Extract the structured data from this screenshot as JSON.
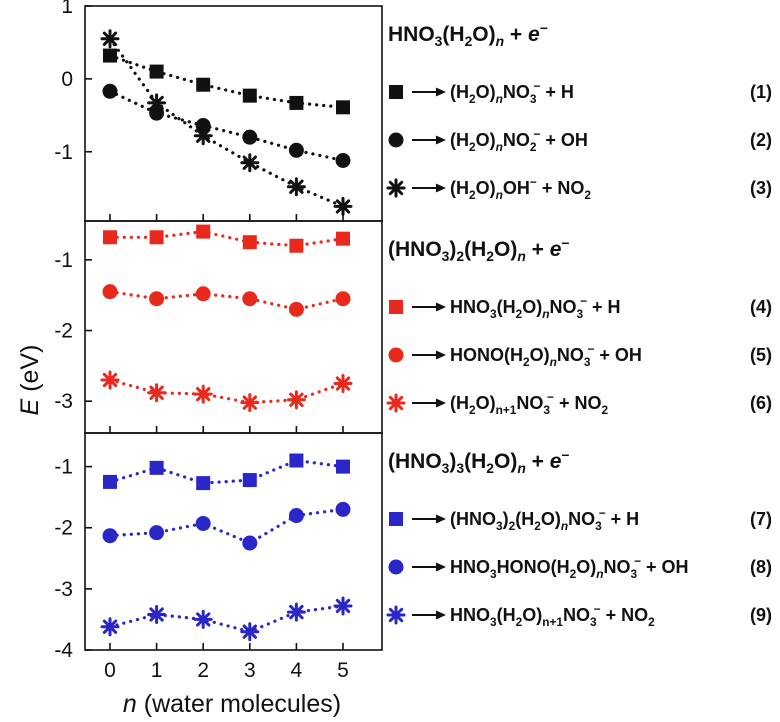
{
  "chart_data": {
    "type": "scatter",
    "xlabel_var": "n",
    "xlabel_rest": " (water molecules)",
    "ylabel_var": "E",
    "ylabel_rest": " (eV)",
    "x": [
      0,
      1,
      2,
      3,
      4,
      5
    ],
    "x_tick_labels": [
      "0",
      "1",
      "2",
      "3",
      "4",
      "5"
    ],
    "panels": [
      {
        "ylim": [
          -1.95,
          1.0
        ],
        "ticks": [
          1,
          0,
          -1
        ],
        "tick_labels": [
          "1",
          "0",
          "-1"
        ],
        "color": "#111111",
        "header": [
          [
            "n",
            "HNO"
          ],
          [
            "s",
            "3"
          ],
          [
            "n",
            "(H"
          ],
          [
            "s",
            "2"
          ],
          [
            "n",
            "O)"
          ],
          [
            "si",
            "n"
          ],
          [
            "n",
            " + "
          ],
          [
            "i",
            "e"
          ],
          [
            "p",
            "−"
          ]
        ],
        "series": [
          {
            "marker": "square",
            "number": "(1)",
            "values": [
              0.32,
              0.1,
              -0.08,
              -0.23,
              -0.33,
              -0.39
            ],
            "label": [
              [
                "n",
                "(H"
              ],
              [
                "s",
                "2"
              ],
              [
                "n",
                "O)"
              ],
              [
                "si",
                "n"
              ],
              [
                "n",
                "NO"
              ],
              [
                "ss",
                "3",
                "−"
              ],
              [
                "n",
                " + H"
              ]
            ]
          },
          {
            "marker": "circle",
            "number": "(2)",
            "values": [
              -0.17,
              -0.47,
              -0.64,
              -0.8,
              -0.98,
              -1.12
            ],
            "label": [
              [
                "n",
                "(H"
              ],
              [
                "s",
                "2"
              ],
              [
                "n",
                "O)"
              ],
              [
                "si",
                "n"
              ],
              [
                "n",
                "NO"
              ],
              [
                "ss",
                "2",
                "−"
              ],
              [
                "n",
                " + OH"
              ]
            ]
          },
          {
            "marker": "star",
            "number": "(3)",
            "values": [
              0.55,
              -0.33,
              -0.78,
              -1.15,
              -1.48,
              -1.75
            ],
            "label": [
              [
                "n",
                "(H"
              ],
              [
                "s",
                "2"
              ],
              [
                "n",
                "O)"
              ],
              [
                "si",
                "n"
              ],
              [
                "n",
                "OH"
              ],
              [
                "p",
                "−"
              ],
              [
                "n",
                " + NO"
              ],
              [
                "s",
                "2"
              ]
            ]
          }
        ]
      },
      {
        "ylim": [
          -3.45,
          -0.45
        ],
        "ticks": [
          -1,
          -2,
          -3
        ],
        "tick_labels": [
          "-1",
          "-2",
          "-3"
        ],
        "color": "#e8291c",
        "header": [
          [
            "n",
            "(HNO"
          ],
          [
            "s",
            "3"
          ],
          [
            "n",
            ")"
          ],
          [
            "s",
            "2"
          ],
          [
            "n",
            "(H"
          ],
          [
            "s",
            "2"
          ],
          [
            "n",
            "O)"
          ],
          [
            "si",
            "n"
          ],
          [
            "n",
            " + "
          ],
          [
            "i",
            "e"
          ],
          [
            "p",
            "−"
          ]
        ],
        "series": [
          {
            "marker": "square",
            "number": "(4)",
            "values": [
              -0.68,
              -0.68,
              -0.6,
              -0.75,
              -0.8,
              -0.7
            ],
            "label": [
              [
                "n",
                "HNO"
              ],
              [
                "s",
                "3"
              ],
              [
                "n",
                "(H"
              ],
              [
                "s",
                "2"
              ],
              [
                "n",
                "O)"
              ],
              [
                "si",
                "n"
              ],
              [
                "n",
                "NO"
              ],
              [
                "ss",
                "3",
                "−"
              ],
              [
                "n",
                " + H"
              ]
            ]
          },
          {
            "marker": "circle",
            "number": "(5)",
            "values": [
              -1.45,
              -1.55,
              -1.48,
              -1.55,
              -1.7,
              -1.55
            ],
            "label": [
              [
                "n",
                "HONO(H"
              ],
              [
                "s",
                "2"
              ],
              [
                "n",
                "O)"
              ],
              [
                "si",
                "n"
              ],
              [
                "n",
                "NO"
              ],
              [
                "ss",
                "3",
                "−"
              ],
              [
                "n",
                " + OH"
              ]
            ]
          },
          {
            "marker": "star",
            "number": "(6)",
            "values": [
              -2.7,
              -2.88,
              -2.9,
              -3.02,
              -2.98,
              -2.75
            ],
            "label": [
              [
                "n",
                "(H"
              ],
              [
                "s",
                "2"
              ],
              [
                "n",
                "O)"
              ],
              [
                "s",
                "n+1"
              ],
              [
                "n",
                "NO"
              ],
              [
                "ss",
                "3",
                "−"
              ],
              [
                "n",
                " + NO"
              ],
              [
                "s",
                "2"
              ]
            ]
          }
        ]
      },
      {
        "ylim": [
          -4.0,
          -0.45
        ],
        "ticks": [
          -1,
          -2,
          -3,
          -4
        ],
        "tick_labels": [
          "-1",
          "-2",
          "-3",
          "-4"
        ],
        "color": "#2a26c8",
        "header": [
          [
            "n",
            "(HNO"
          ],
          [
            "s",
            "3"
          ],
          [
            "n",
            ")"
          ],
          [
            "s",
            "3"
          ],
          [
            "n",
            "(H"
          ],
          [
            "s",
            "2"
          ],
          [
            "n",
            "O)"
          ],
          [
            "si",
            "n"
          ],
          [
            "n",
            " + "
          ],
          [
            "i",
            "e"
          ],
          [
            "p",
            "−"
          ]
        ],
        "series": [
          {
            "marker": "square",
            "number": "(7)",
            "values": [
              -1.25,
              -1.02,
              -1.27,
              -1.22,
              -0.9,
              -1.0
            ],
            "label": [
              [
                "n",
                "(HNO"
              ],
              [
                "s",
                "3"
              ],
              [
                "n",
                ")"
              ],
              [
                "s",
                "2"
              ],
              [
                "n",
                "(H"
              ],
              [
                "s",
                "2"
              ],
              [
                "n",
                "O)"
              ],
              [
                "si",
                "n"
              ],
              [
                "n",
                "NO"
              ],
              [
                "ss",
                "3",
                "−"
              ],
              [
                "n",
                " + H"
              ]
            ]
          },
          {
            "marker": "circle",
            "number": "(8)",
            "values": [
              -2.13,
              -2.08,
              -1.93,
              -2.25,
              -1.8,
              -1.7
            ],
            "label": [
              [
                "n",
                "HNO"
              ],
              [
                "s",
                "3"
              ],
              [
                "n",
                "HONO(H"
              ],
              [
                "s",
                "2"
              ],
              [
                "n",
                "O)"
              ],
              [
                "si",
                "n"
              ],
              [
                "n",
                "NO"
              ],
              [
                "ss",
                "3",
                "−"
              ],
              [
                "n",
                " + OH"
              ]
            ]
          },
          {
            "marker": "star",
            "number": "(9)",
            "values": [
              -3.62,
              -3.42,
              -3.5,
              -3.7,
              -3.38,
              -3.28
            ],
            "label": [
              [
                "n",
                "HNO"
              ],
              [
                "s",
                "3"
              ],
              [
                "n",
                "(H"
              ],
              [
                "s",
                "2"
              ],
              [
                "n",
                "O)"
              ],
              [
                "s",
                "n+1"
              ],
              [
                "n",
                "NO"
              ],
              [
                "ss",
                "3",
                "−"
              ],
              [
                "n",
                " + NO"
              ],
              [
                "s",
                "2"
              ]
            ]
          }
        ]
      }
    ]
  }
}
